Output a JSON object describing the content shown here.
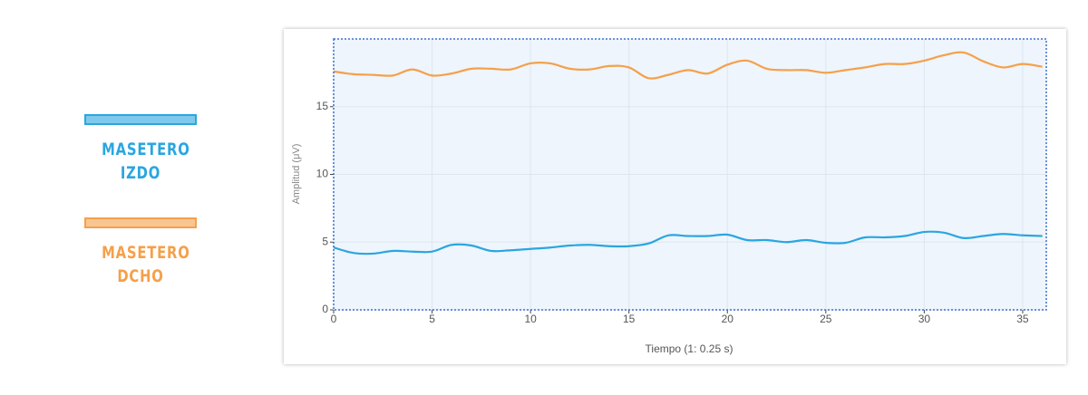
{
  "chart_data": {
    "type": "line",
    "x_label": "Tiempo (1: 0.25 s)",
    "y_label": "Amplitud (μV)",
    "x": [
      0,
      1,
      2,
      3,
      4,
      5,
      6,
      7,
      8,
      9,
      10,
      11,
      12,
      13,
      14,
      15,
      16,
      17,
      18,
      19,
      20,
      21,
      22,
      23,
      24,
      25,
      26,
      27,
      28,
      29,
      30,
      31,
      32,
      33,
      34,
      35,
      36
    ],
    "series": [
      {
        "name": "MASETERO IZDO",
        "color": "#2aa6e0",
        "values": [
          4.6,
          4.2,
          4.15,
          4.35,
          4.3,
          4.3,
          4.8,
          4.75,
          4.35,
          4.4,
          4.5,
          4.6,
          4.75,
          4.8,
          4.7,
          4.7,
          4.9,
          5.5,
          5.45,
          5.45,
          5.55,
          5.15,
          5.15,
          5.0,
          5.15,
          4.95,
          4.95,
          5.35,
          5.35,
          5.45,
          5.75,
          5.7,
          5.3,
          5.45,
          5.6,
          5.5,
          5.45
        ]
      },
      {
        "name": "MASETERO DCHO",
        "color": "#f5a04a",
        "values": [
          17.6,
          17.4,
          17.35,
          17.3,
          17.75,
          17.3,
          17.45,
          17.8,
          17.8,
          17.75,
          18.2,
          18.2,
          17.8,
          17.75,
          18.0,
          17.9,
          17.1,
          17.35,
          17.7,
          17.45,
          18.1,
          18.4,
          17.8,
          17.7,
          17.7,
          17.5,
          17.7,
          17.9,
          18.15,
          18.15,
          18.4,
          18.8,
          19.0,
          18.35,
          17.9,
          18.15,
          17.95
        ]
      }
    ],
    "xlim": [
      0,
      36.2
    ],
    "xticks": [
      0,
      5,
      10,
      15,
      20,
      25,
      30,
      35
    ],
    "ylim": [
      0,
      20
    ],
    "yticks": [
      0,
      5,
      10,
      15
    ],
    "grid": true
  }
}
